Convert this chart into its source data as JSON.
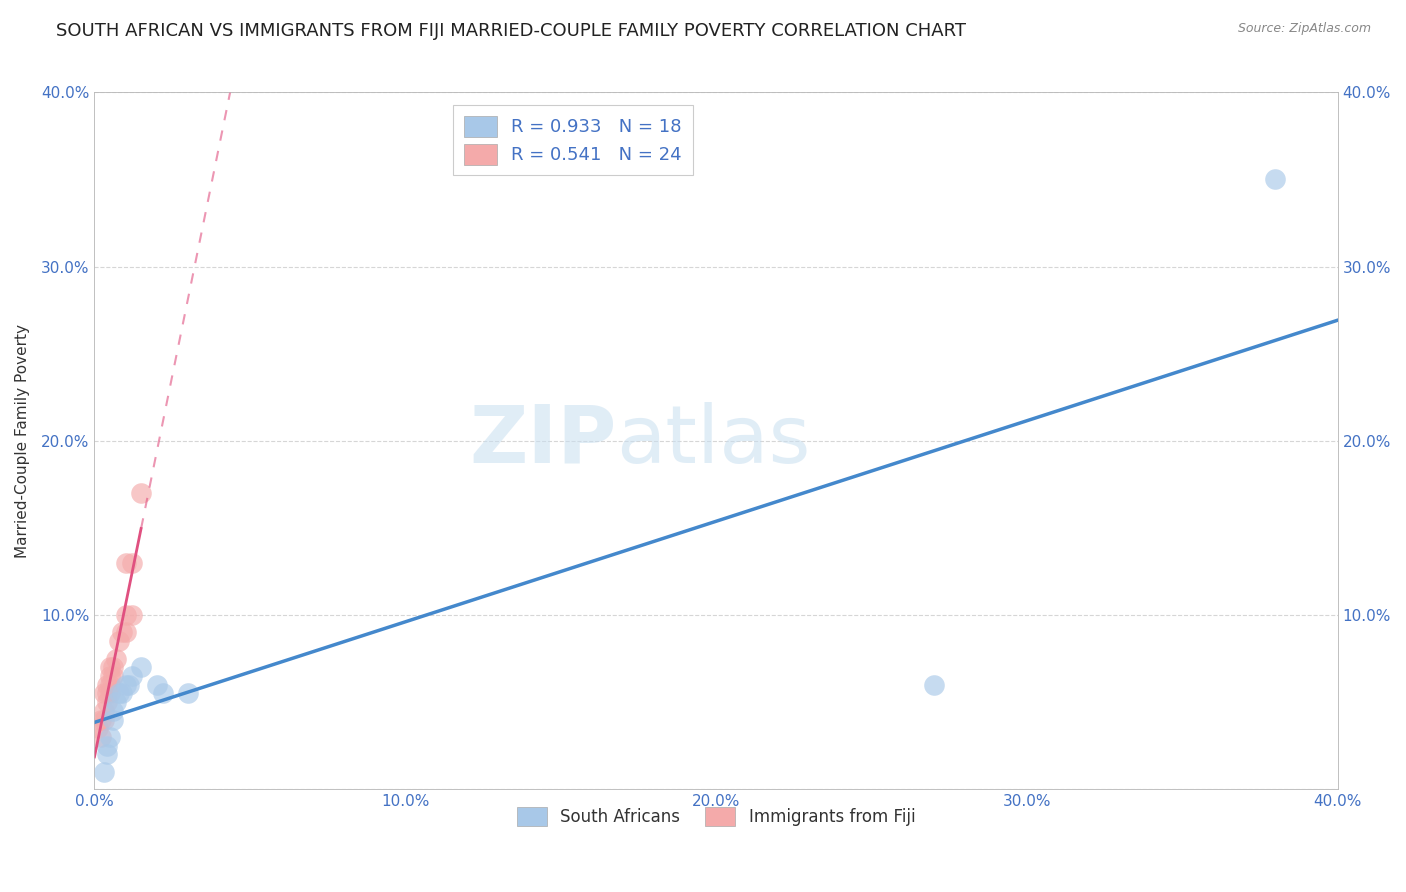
{
  "title": "SOUTH AFRICAN VS IMMIGRANTS FROM FIJI MARRIED-COUPLE FAMILY POVERTY CORRELATION CHART",
  "source": "Source: ZipAtlas.com",
  "ylabel": "Married-Couple Family Poverty",
  "xlim": [
    0.0,
    0.4
  ],
  "ylim": [
    0.0,
    0.4
  ],
  "xtick_labels": [
    "0.0%",
    "10.0%",
    "20.0%",
    "30.0%",
    "40.0%"
  ],
  "xtick_values": [
    0.0,
    0.1,
    0.2,
    0.3,
    0.4
  ],
  "ytick_labels": [
    "",
    "10.0%",
    "20.0%",
    "30.0%",
    "40.0%"
  ],
  "ytick_values": [
    0.0,
    0.1,
    0.2,
    0.3,
    0.4
  ],
  "legend_R_blue": "R = 0.933",
  "legend_N_blue": "N = 18",
  "legend_R_pink": "R = 0.541",
  "legend_N_pink": "N = 24",
  "blue_color": "#a8c8e8",
  "blue_line_color": "#4488cc",
  "pink_color": "#f4aaaa",
  "pink_line_color": "#e05080",
  "watermark_zip": "ZIP",
  "watermark_atlas": "atlas",
  "south_africans_x": [
    0.003,
    0.004,
    0.004,
    0.005,
    0.006,
    0.006,
    0.007,
    0.008,
    0.009,
    0.01,
    0.011,
    0.012,
    0.015,
    0.02,
    0.022,
    0.03,
    0.27,
    0.38
  ],
  "south_africans_y": [
    0.01,
    0.02,
    0.025,
    0.03,
    0.04,
    0.045,
    0.05,
    0.055,
    0.055,
    0.06,
    0.06,
    0.065,
    0.07,
    0.06,
    0.055,
    0.055,
    0.06,
    0.35
  ],
  "fiji_x": [
    0.001,
    0.002,
    0.002,
    0.003,
    0.003,
    0.003,
    0.004,
    0.004,
    0.004,
    0.005,
    0.005,
    0.005,
    0.005,
    0.006,
    0.006,
    0.007,
    0.008,
    0.009,
    0.01,
    0.01,
    0.01,
    0.012,
    0.012,
    0.015
  ],
  "fiji_y": [
    0.035,
    0.03,
    0.04,
    0.04,
    0.045,
    0.055,
    0.05,
    0.055,
    0.06,
    0.055,
    0.06,
    0.065,
    0.07,
    0.065,
    0.07,
    0.075,
    0.085,
    0.09,
    0.09,
    0.1,
    0.13,
    0.1,
    0.13,
    0.17
  ],
  "background_color": "#ffffff",
  "grid_color": "#cccccc",
  "title_fontsize": 13,
  "label_fontsize": 11,
  "tick_fontsize": 11,
  "legend_fontsize": 13
}
